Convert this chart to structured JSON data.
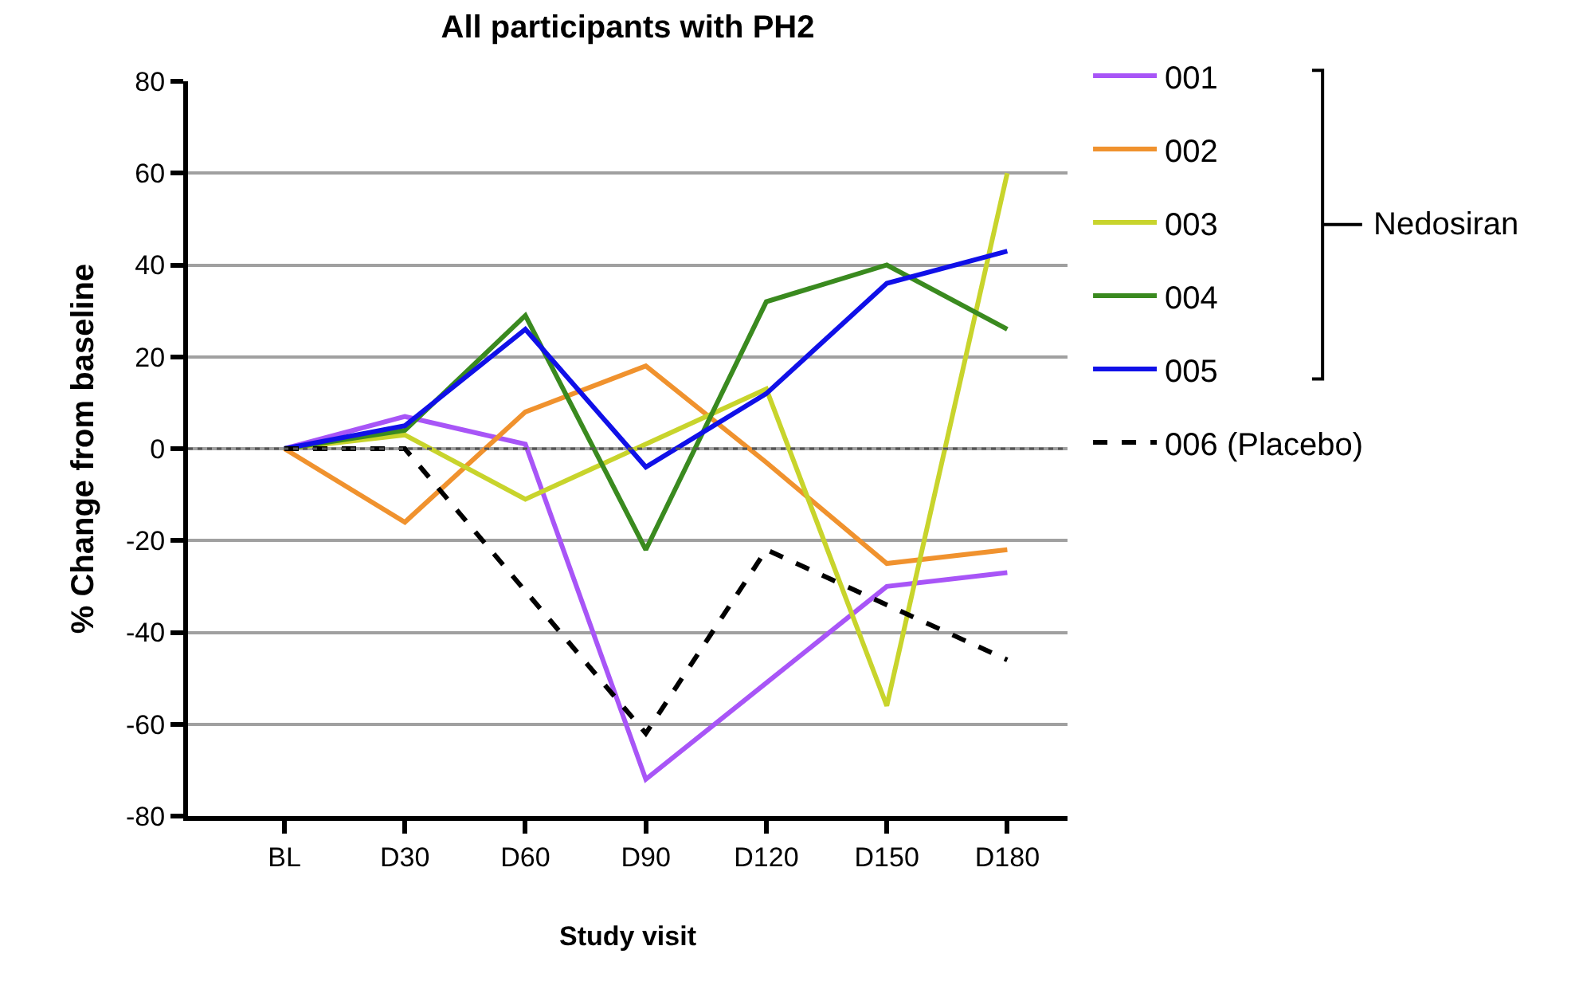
{
  "chart_data": {
    "type": "line",
    "title": "All participants with PH2",
    "xlabel": "Study visit",
    "ylabel": "% Change from baseline",
    "categories": [
      "BL",
      "D30",
      "D60",
      "D90",
      "D120",
      "D150",
      "D180"
    ],
    "series": [
      {
        "name": "001",
        "color": "#a855f7",
        "values": [
          0,
          7,
          1,
          -72,
          -51,
          -30,
          -27
        ]
      },
      {
        "name": "002",
        "color": "#f0922e",
        "values": [
          0,
          -16,
          8,
          18,
          -3,
          -25,
          -22
        ]
      },
      {
        "name": "003",
        "color": "#c8d42c",
        "values": [
          0,
          3,
          -11,
          1,
          13,
          -56,
          60
        ]
      },
      {
        "name": "004",
        "color": "#3a8a1f",
        "values": [
          0,
          4,
          29,
          -22,
          32,
          40,
          26
        ]
      },
      {
        "name": "005",
        "color": "#1010e8",
        "values": [
          0,
          5,
          26,
          -4,
          12,
          36,
          43
        ]
      },
      {
        "name": "006 (Placebo)",
        "color": "#000000",
        "line_style": "dashed",
        "values": [
          0,
          0,
          -31,
          -62,
          -22,
          -34,
          -46
        ]
      }
    ],
    "ylim": [
      -80,
      80
    ],
    "yticks": [
      -80,
      -60,
      -40,
      -20,
      0,
      20,
      40,
      60,
      80
    ],
    "grid": "y",
    "legend": "right",
    "marker": "none",
    "line_style": "solid",
    "ref_lines": [
      {
        "axis": "y",
        "value": 0,
        "color": "#555555",
        "line_style": "dotted"
      }
    ],
    "annotations": [
      "Nedosiran"
    ]
  }
}
